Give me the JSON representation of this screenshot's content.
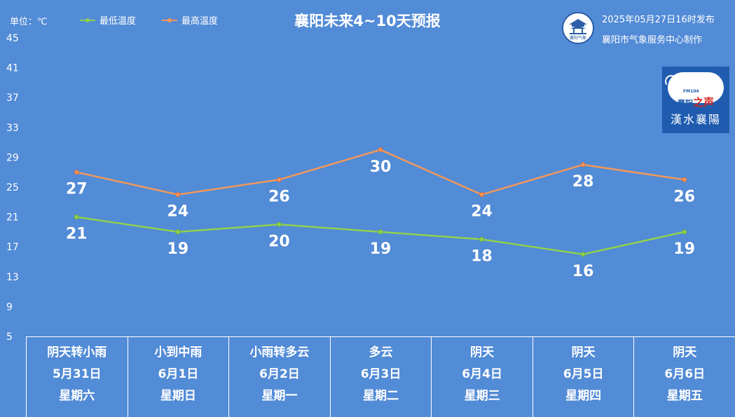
{
  "header": {
    "unit_label": "单位：℃",
    "title": "襄阳未来4~10天预报",
    "issue_time": "2025年05月27日16时发布",
    "maker": "襄阳市气象服务中心制作",
    "logo_text": "襄阳气象"
  },
  "badge": {
    "fm": "FM104",
    "station_a": "襄阳",
    "station_b": "之声",
    "slogan": "漢水襄陽"
  },
  "colors": {
    "background": "#528bd6",
    "low_line": "#8fd14f",
    "high_line": "#f0985a"
  },
  "chart_data": {
    "type": "line",
    "title": "襄阳未来4~10天预报",
    "ylabel": "单位：℃",
    "ylim": [
      5,
      45
    ],
    "yticks": [
      5,
      9,
      13,
      17,
      21,
      25,
      29,
      33,
      37,
      41,
      45
    ],
    "grid": false,
    "legend_position": "top-left",
    "categories": [
      "5月31日",
      "6月1日",
      "6月2日",
      "6月3日",
      "6月4日",
      "6月5日",
      "6月6日"
    ],
    "series": [
      {
        "name": "最低温度",
        "values": [
          21,
          19,
          20,
          19,
          18,
          16,
          19
        ]
      },
      {
        "name": "最高温度",
        "values": [
          27,
          24,
          26,
          30,
          24,
          28,
          26
        ]
      }
    ]
  },
  "days": [
    {
      "weather": "阴天转小雨",
      "date": "5月31日",
      "weekday": "星期六"
    },
    {
      "weather": "小到中雨",
      "date": "6月1日",
      "weekday": "星期日"
    },
    {
      "weather": "小雨转多云",
      "date": "6月2日",
      "weekday": "星期一"
    },
    {
      "weather": "多云",
      "date": "6月3日",
      "weekday": "星期二"
    },
    {
      "weather": "阴天",
      "date": "6月4日",
      "weekday": "星期三"
    },
    {
      "weather": "阴天",
      "date": "6月5日",
      "weekday": "星期四"
    },
    {
      "weather": "阴天",
      "date": "6月6日",
      "weekday": "星期五"
    }
  ]
}
